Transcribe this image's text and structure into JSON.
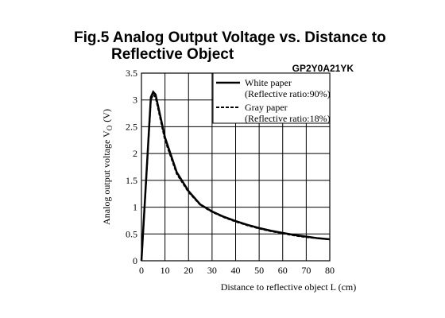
{
  "chart_data": {
    "type": "line",
    "title": [
      "Fig.5 Analog Output Voltage vs. Distance to",
      "Reflective Object"
    ],
    "model": "GP2Y0A21YK",
    "xlabel": "Distance to reflective object L (cm)",
    "ylabel": [
      "Analog output voltage V",
      "O",
      "(V)"
    ],
    "x": [
      0,
      4,
      5,
      6,
      8,
      10,
      15,
      20,
      25,
      30,
      35,
      40,
      45,
      50,
      55,
      60,
      65,
      70,
      75,
      80
    ],
    "series": [
      {
        "name": "White paper",
        "note": "(Reflective ratio:90%)",
        "color": "#000000",
        "dash": "solid",
        "values": [
          0,
          3.05,
          3.15,
          3.1,
          2.7,
          2.3,
          1.65,
          1.3,
          1.05,
          0.92,
          0.82,
          0.74,
          0.67,
          0.61,
          0.56,
          0.52,
          0.48,
          0.45,
          0.42,
          0.4
        ]
      },
      {
        "name": "Gray paper",
        "note": "(Reflective ratio:18%)",
        "color": "#000000",
        "dash": "dashed",
        "values": [
          0,
          3.0,
          3.1,
          3.05,
          2.65,
          2.25,
          1.62,
          1.28,
          1.04,
          0.91,
          0.81,
          0.73,
          0.66,
          0.6,
          0.55,
          0.51,
          0.47,
          0.44,
          0.42,
          0.4
        ]
      }
    ],
    "xlim": [
      0,
      80
    ],
    "xticks": [
      0,
      10,
      20,
      30,
      40,
      50,
      60,
      70,
      80
    ],
    "ylim": [
      0,
      3.5
    ],
    "yticks": [
      0,
      0.5,
      1,
      1.5,
      2,
      2.5,
      3,
      3.5
    ],
    "grid": true
  }
}
